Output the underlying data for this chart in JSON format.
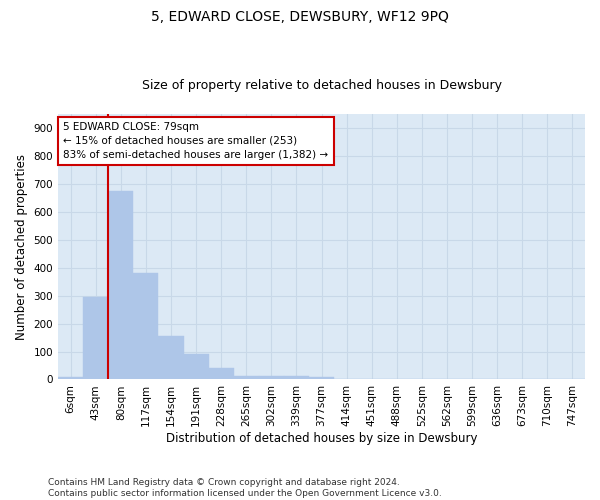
{
  "title": "5, EDWARD CLOSE, DEWSBURY, WF12 9PQ",
  "subtitle": "Size of property relative to detached houses in Dewsbury",
  "xlabel": "Distribution of detached houses by size in Dewsbury",
  "ylabel": "Number of detached properties",
  "categories": [
    "6sqm",
    "43sqm",
    "80sqm",
    "117sqm",
    "154sqm",
    "191sqm",
    "228sqm",
    "265sqm",
    "302sqm",
    "339sqm",
    "377sqm",
    "414sqm",
    "451sqm",
    "488sqm",
    "525sqm",
    "562sqm",
    "599sqm",
    "636sqm",
    "673sqm",
    "710sqm",
    "747sqm"
  ],
  "values": [
    8,
    295,
    675,
    382,
    155,
    90,
    40,
    14,
    12,
    11,
    9,
    0,
    0,
    0,
    0,
    0,
    0,
    0,
    0,
    0,
    0
  ],
  "bar_color": "#aec6e8",
  "bar_edge_color": "#aec6e8",
  "grid_color": "#c8d8e8",
  "background_color": "#dce9f5",
  "annotation_text": "5 EDWARD CLOSE: 79sqm\n← 15% of detached houses are smaller (253)\n83% of semi-detached houses are larger (1,382) →",
  "annotation_box_color": "#ffffff",
  "annotation_box_edge_color": "#cc0000",
  "vline_color": "#cc0000",
  "ylim": [
    0,
    950
  ],
  "yticks": [
    0,
    100,
    200,
    300,
    400,
    500,
    600,
    700,
    800,
    900
  ],
  "footnote": "Contains HM Land Registry data © Crown copyright and database right 2024.\nContains public sector information licensed under the Open Government Licence v3.0.",
  "title_fontsize": 10,
  "subtitle_fontsize": 9,
  "axis_label_fontsize": 8.5,
  "tick_fontsize": 7.5,
  "annotation_fontsize": 7.5,
  "footnote_fontsize": 6.5
}
